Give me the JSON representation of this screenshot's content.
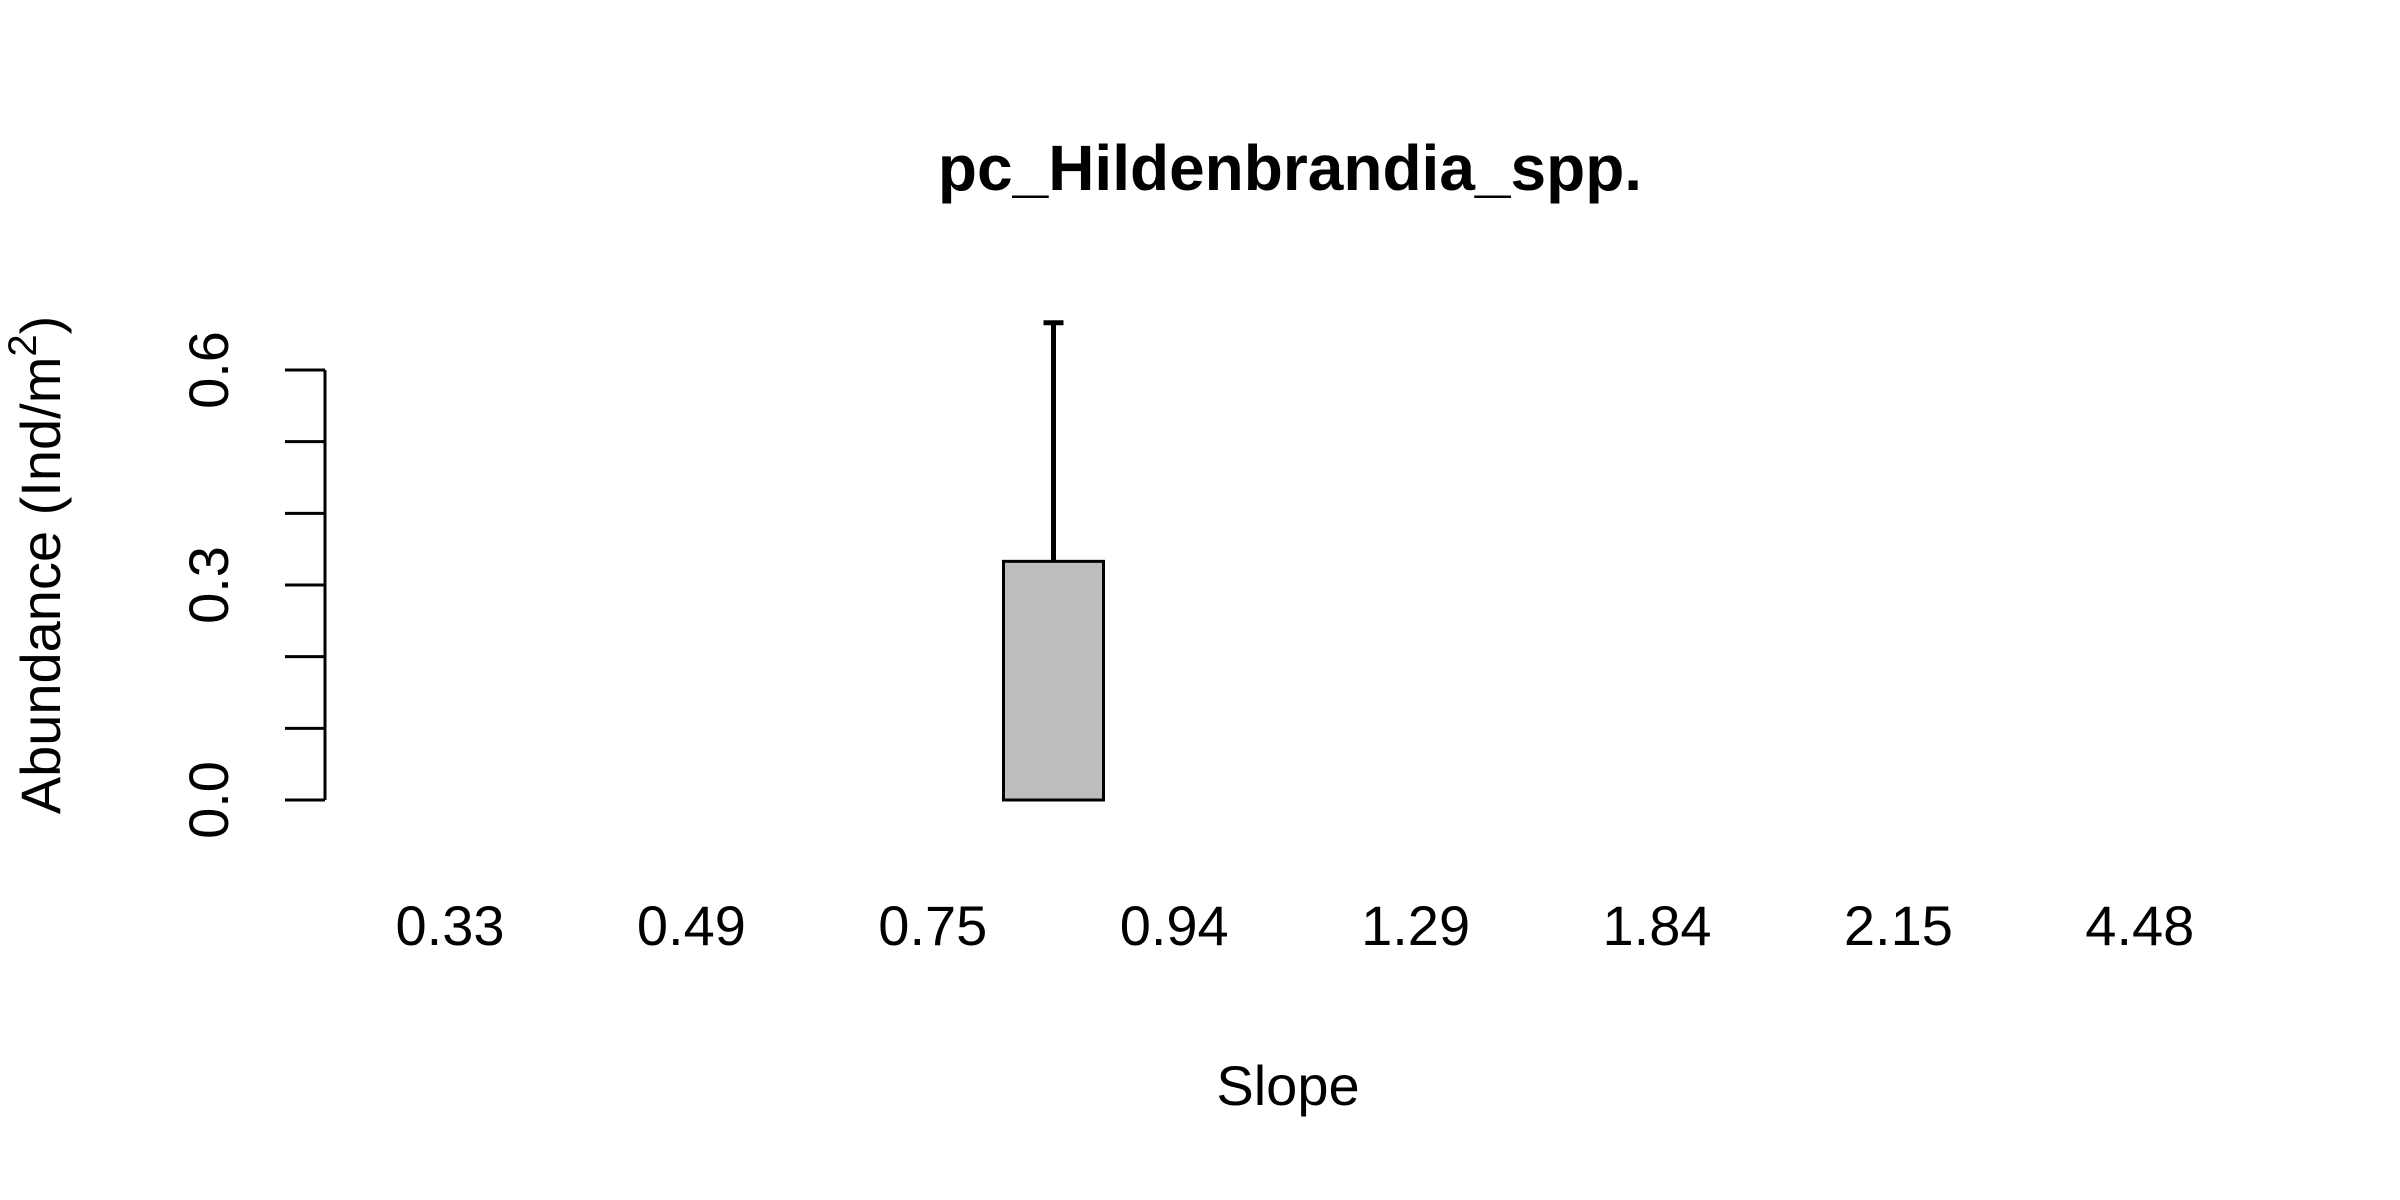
{
  "chart_data": {
    "type": "bar",
    "title": "pc_Hildenbrandia_spp.",
    "xlabel": "Slope",
    "ylabel": "Abundance (Ind/m",
    "ylabel_superscript": "2",
    "ylabel_suffix": ")",
    "categories": [
      "0.33",
      "",
      "0.49",
      "",
      "0.75",
      "",
      "0.94",
      "",
      "1.29",
      "",
      "1.84",
      "",
      "2.15",
      "",
      "4.48"
    ],
    "values": [
      0,
      0,
      0,
      0,
      0,
      0.333,
      0,
      0,
      0,
      0,
      0,
      0,
      0,
      0,
      0
    ],
    "errors": [
      0,
      0,
      0,
      0,
      0,
      0.333,
      0,
      0,
      0,
      0,
      0,
      0,
      0,
      0,
      0
    ],
    "ylim": [
      0,
      0.6
    ],
    "yticks": [
      0,
      0.1,
      0.2,
      0.3,
      0.4,
      0.5,
      0.6
    ],
    "ytick_labels": [
      "0.0",
      "",
      "",
      "0.3",
      "",
      "",
      "0.6"
    ],
    "bar_color": "#bebebe",
    "grid": false,
    "legend": "none"
  }
}
